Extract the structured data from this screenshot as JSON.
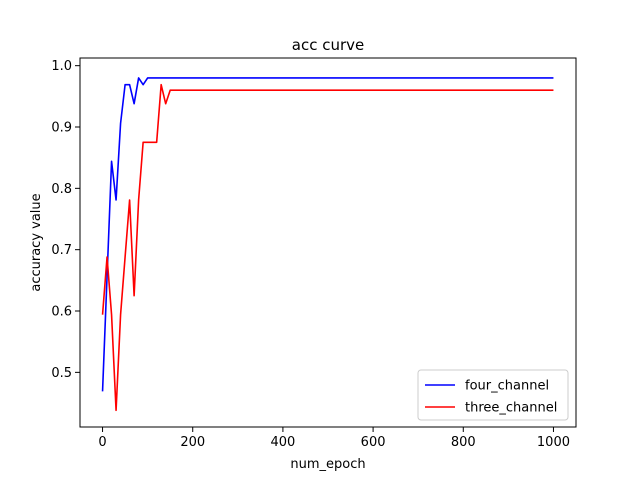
{
  "chart_data": {
    "type": "line",
    "title": "acc curve",
    "xlabel": "num_epoch",
    "ylabel": "accuracy value",
    "xlim": [
      -50,
      1050
    ],
    "ylim": [
      0.4109,
      1.0125
    ],
    "xticks": [
      0,
      200,
      400,
      600,
      800,
      1000
    ],
    "xtick_labels": [
      "0",
      "200",
      "400",
      "600",
      "800",
      "1000"
    ],
    "yticks": [
      0.5,
      0.6,
      0.7,
      0.8,
      0.9,
      1.0
    ],
    "ytick_labels": [
      "0.5",
      "0.6",
      "0.7",
      "0.8",
      "0.9",
      "1.0"
    ],
    "grid": false,
    "legend_position": "lower-right",
    "series": [
      {
        "name": "four_channel",
        "color": "#0000ff",
        "x": [
          0,
          10,
          20,
          30,
          40,
          50,
          60,
          70,
          80,
          90,
          100,
          1000
        ],
        "y": [
          0.469,
          0.656,
          0.844,
          0.781,
          0.906,
          0.969,
          0.969,
          0.938,
          0.98,
          0.969,
          0.98,
          0.98
        ]
      },
      {
        "name": "three_channel",
        "color": "#ff0000",
        "x": [
          0,
          10,
          20,
          30,
          40,
          50,
          60,
          70,
          80,
          90,
          100,
          110,
          120,
          130,
          140,
          150,
          1000
        ],
        "y": [
          0.594,
          0.688,
          0.594,
          0.438,
          0.594,
          0.688,
          0.781,
          0.625,
          0.781,
          0.875,
          0.875,
          0.875,
          0.875,
          0.969,
          0.938,
          0.96,
          0.96
        ]
      }
    ]
  }
}
